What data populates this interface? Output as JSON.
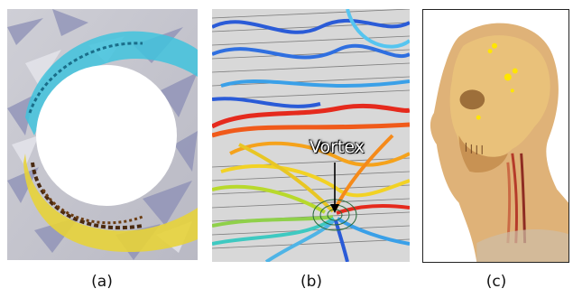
{
  "figure": {
    "panels": [
      {
        "id": "a",
        "caption": "(a)",
        "description_icon": "flow-around-cylinder-glyphs"
      },
      {
        "id": "b",
        "caption": "(b)",
        "description_icon": "streamline-vector-field",
        "annotation": "Vortex"
      },
      {
        "id": "c",
        "caption": "(c)",
        "description_icon": "volume-rendered-head"
      }
    ]
  }
}
